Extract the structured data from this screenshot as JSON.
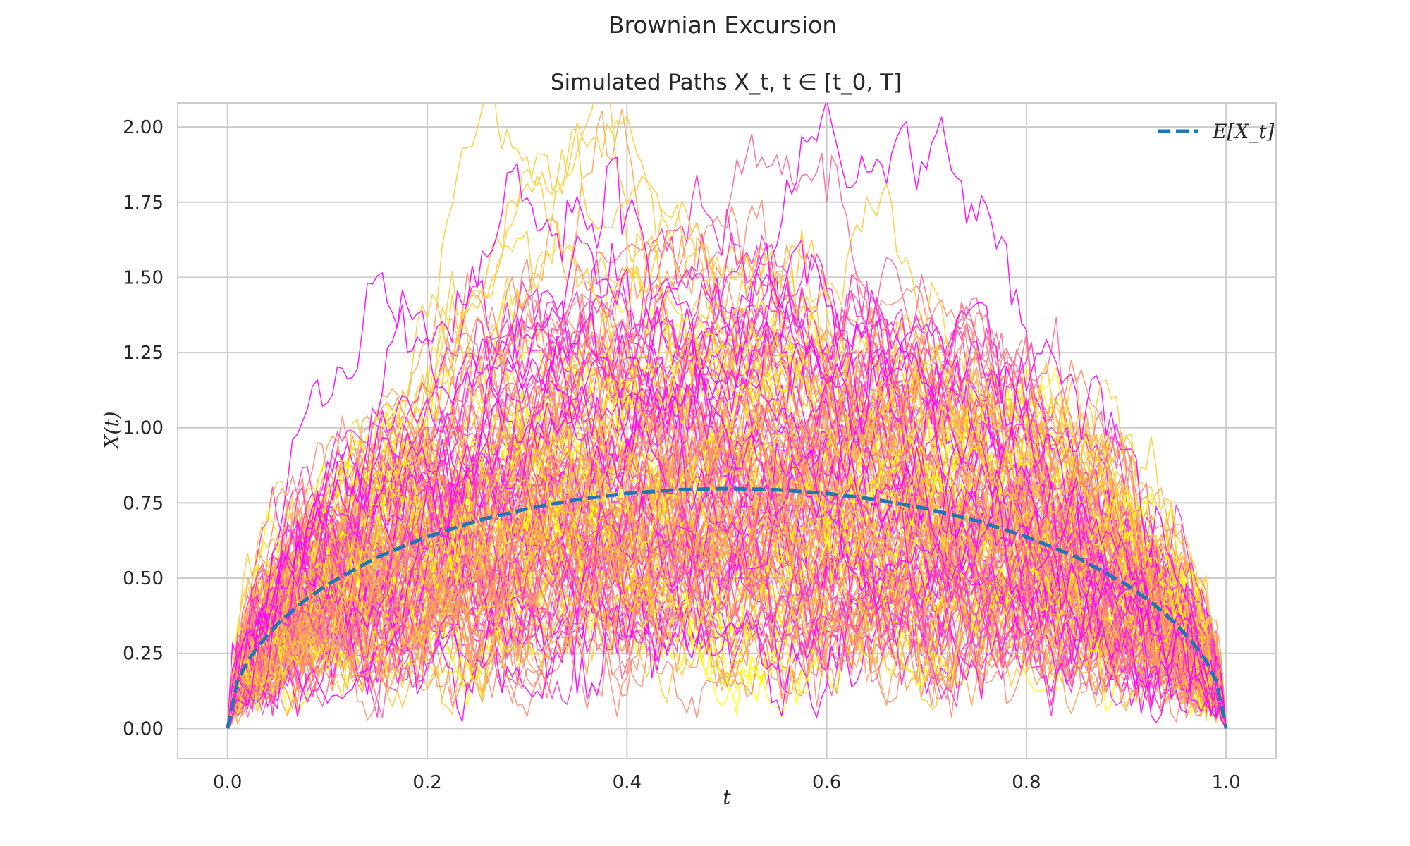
{
  "chart_data": {
    "type": "line",
    "title": "Brownian Excursion",
    "subtitle": "Simulated Paths X_t, t ∈ [t_0, T]",
    "xlabel": "t",
    "ylabel": "X(t)",
    "xlim": [
      -0.05,
      1.05
    ],
    "ylim": [
      -0.1,
      2.08
    ],
    "xticks": [
      0.0,
      0.2,
      0.4,
      0.6,
      0.8,
      1.0
    ],
    "xtick_labels": [
      "0.0",
      "0.2",
      "0.4",
      "0.6",
      "0.8",
      "1.0"
    ],
    "yticks": [
      0.0,
      0.25,
      0.5,
      0.75,
      1.0,
      1.25,
      1.5,
      1.75,
      2.0
    ],
    "ytick_labels": [
      "0.00",
      "0.25",
      "0.50",
      "0.75",
      "1.00",
      "1.25",
      "1.50",
      "1.75",
      "2.00"
    ],
    "grid": true,
    "legend": {
      "position": "top-right",
      "entries": [
        "E[X_t]"
      ]
    },
    "mean_series": {
      "name": "E[X_t]",
      "color": "#1f77b4",
      "style": "dashed",
      "x": [
        0,
        0.01,
        0.02,
        0.03,
        0.05,
        0.075,
        0.1,
        0.15,
        0.2,
        0.25,
        0.3,
        0.35,
        0.4,
        0.45,
        0.5,
        0.55,
        0.6,
        0.65,
        0.7,
        0.75,
        0.8,
        0.85,
        0.9,
        0.925,
        0.95,
        0.97,
        0.98,
        0.99,
        1.0
      ],
      "y": [
        0,
        0.159,
        0.223,
        0.271,
        0.348,
        0.42,
        0.479,
        0.57,
        0.638,
        0.691,
        0.731,
        0.761,
        0.782,
        0.794,
        0.798,
        0.794,
        0.782,
        0.761,
        0.731,
        0.691,
        0.638,
        0.57,
        0.479,
        0.42,
        0.348,
        0.271,
        0.223,
        0.159,
        0
      ]
    },
    "paths": {
      "count": 150,
      "steps": 200,
      "colormap": "spring",
      "colors": [
        "#ff00ff",
        "#ff33cc",
        "#ff6699",
        "#ff8c73",
        "#ffa64d",
        "#ffcc33",
        "#ffff00"
      ]
    }
  }
}
